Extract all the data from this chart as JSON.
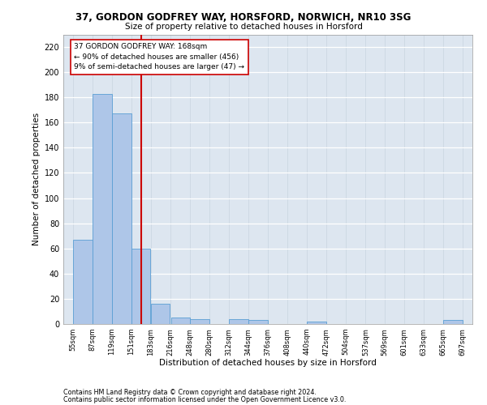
{
  "title1": "37, GORDON GODFREY WAY, HORSFORD, NORWICH, NR10 3SG",
  "title2": "Size of property relative to detached houses in Horsford",
  "xlabel": "Distribution of detached houses by size in Horsford",
  "ylabel": "Number of detached properties",
  "footer1": "Contains HM Land Registry data © Crown copyright and database right 2024.",
  "footer2": "Contains public sector information licensed under the Open Government Licence v3.0.",
  "annotation_line1": "37 GORDON GODFREY WAY: 168sqm",
  "annotation_line2": "← 90% of detached houses are smaller (456)",
  "annotation_line3": "9% of semi-detached houses are larger (47) →",
  "property_size": 168,
  "bins": [
    55,
    87,
    119,
    151,
    183,
    216,
    248,
    280,
    312,
    344,
    376,
    408,
    440,
    472,
    504,
    537,
    569,
    601,
    633,
    665,
    697
  ],
  "bar_heights": [
    67,
    183,
    167,
    60,
    16,
    5,
    4,
    0,
    4,
    3,
    0,
    0,
    2,
    0,
    0,
    0,
    0,
    0,
    0,
    3
  ],
  "bar_color": "#aec6e8",
  "bar_edge_color": "#5a9fd4",
  "vline_color": "#cc0000",
  "annotation_box_color": "#cc0000",
  "background_color": "#dde6f0",
  "ylim": [
    0,
    230
  ],
  "yticks": [
    0,
    20,
    40,
    60,
    80,
    100,
    120,
    140,
    160,
    180,
    200,
    220
  ]
}
